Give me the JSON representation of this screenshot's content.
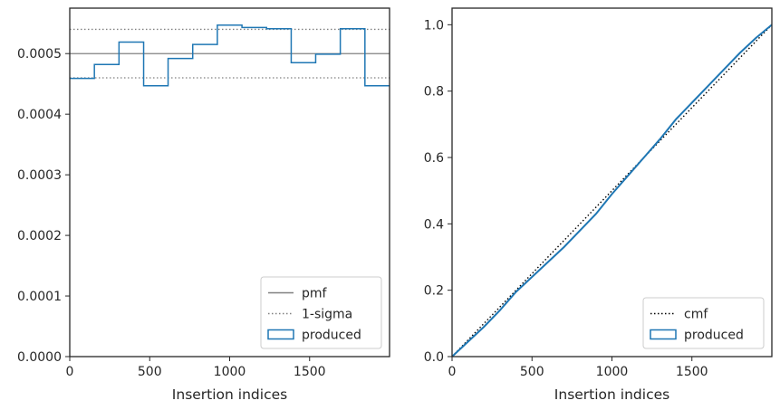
{
  "colors": {
    "produced": "#1f77b4",
    "pmf": "#808080",
    "sigma": "#808080",
    "cmf": "#000000",
    "axes": "#262626"
  },
  "chart_data": [
    {
      "type": "step-histogram",
      "xlabel": "Insertion indices",
      "ylabel": "",
      "xlim": [
        0,
        2000
      ],
      "ylim": [
        0,
        0.000575
      ],
      "xticks": [
        0,
        500,
        1000,
        1500
      ],
      "xtick_labels": [
        "0",
        "500",
        "1000",
        "1500"
      ],
      "yticks": [
        0,
        0.0001,
        0.0002,
        0.0003,
        0.0004,
        0.0005
      ],
      "ytick_labels": [
        "0.0000",
        "0.0001",
        "0.0002",
        "0.0003",
        "0.0004",
        "0.0005"
      ],
      "bin_edges": [
        0,
        154,
        308,
        462,
        615,
        769,
        923,
        1077,
        1231,
        1385,
        1538,
        1692,
        1846,
        2000
      ],
      "series": [
        {
          "name": "produced",
          "values": [
            0.000459,
            0.000482,
            0.000519,
            0.000447,
            0.000492,
            0.000515,
            0.000547,
            0.000543,
            0.000541,
            0.000485,
            0.000499,
            0.000541,
            0.000447
          ]
        }
      ],
      "reference_lines": [
        {
          "name": "pmf",
          "y": 0.0005,
          "style": "solid"
        },
        {
          "name": "1-sigma",
          "y": 0.00054,
          "style": "dotted"
        },
        {
          "name": "1-sigma",
          "y": 0.00046,
          "style": "dotted",
          "legend": false
        }
      ],
      "legend": {
        "position": "lower-right",
        "entries": [
          "pmf",
          "1-sigma",
          "produced"
        ]
      }
    },
    {
      "type": "line",
      "xlabel": "Insertion indices",
      "ylabel": "",
      "xlim": [
        0,
        2000
      ],
      "ylim": [
        0,
        1.05
      ],
      "xticks": [
        0,
        500,
        1000,
        1500
      ],
      "xtick_labels": [
        "0",
        "500",
        "1000",
        "1500"
      ],
      "yticks": [
        0,
        0.2,
        0.4,
        0.6,
        0.8,
        1.0
      ],
      "ytick_labels": [
        "0.0",
        "0.2",
        "0.4",
        "0.6",
        "0.8",
        "1.0"
      ],
      "series": [
        {
          "name": "cmf",
          "style": "dotted",
          "x": [
            0,
            2000
          ],
          "y": [
            0,
            1.0
          ]
        },
        {
          "name": "produced",
          "style": "solid",
          "x": [
            0,
            100,
            200,
            300,
            400,
            500,
            600,
            700,
            800,
            900,
            1000,
            1100,
            1200,
            1300,
            1400,
            1500,
            1600,
            1700,
            1800,
            1900,
            2000
          ],
          "y": [
            0,
            0.045,
            0.09,
            0.14,
            0.195,
            0.24,
            0.285,
            0.33,
            0.38,
            0.43,
            0.49,
            0.545,
            0.6,
            0.655,
            0.715,
            0.765,
            0.815,
            0.865,
            0.915,
            0.96,
            1.0
          ]
        }
      ],
      "legend": {
        "position": "lower-right",
        "entries": [
          "cmf",
          "produced"
        ]
      }
    }
  ]
}
